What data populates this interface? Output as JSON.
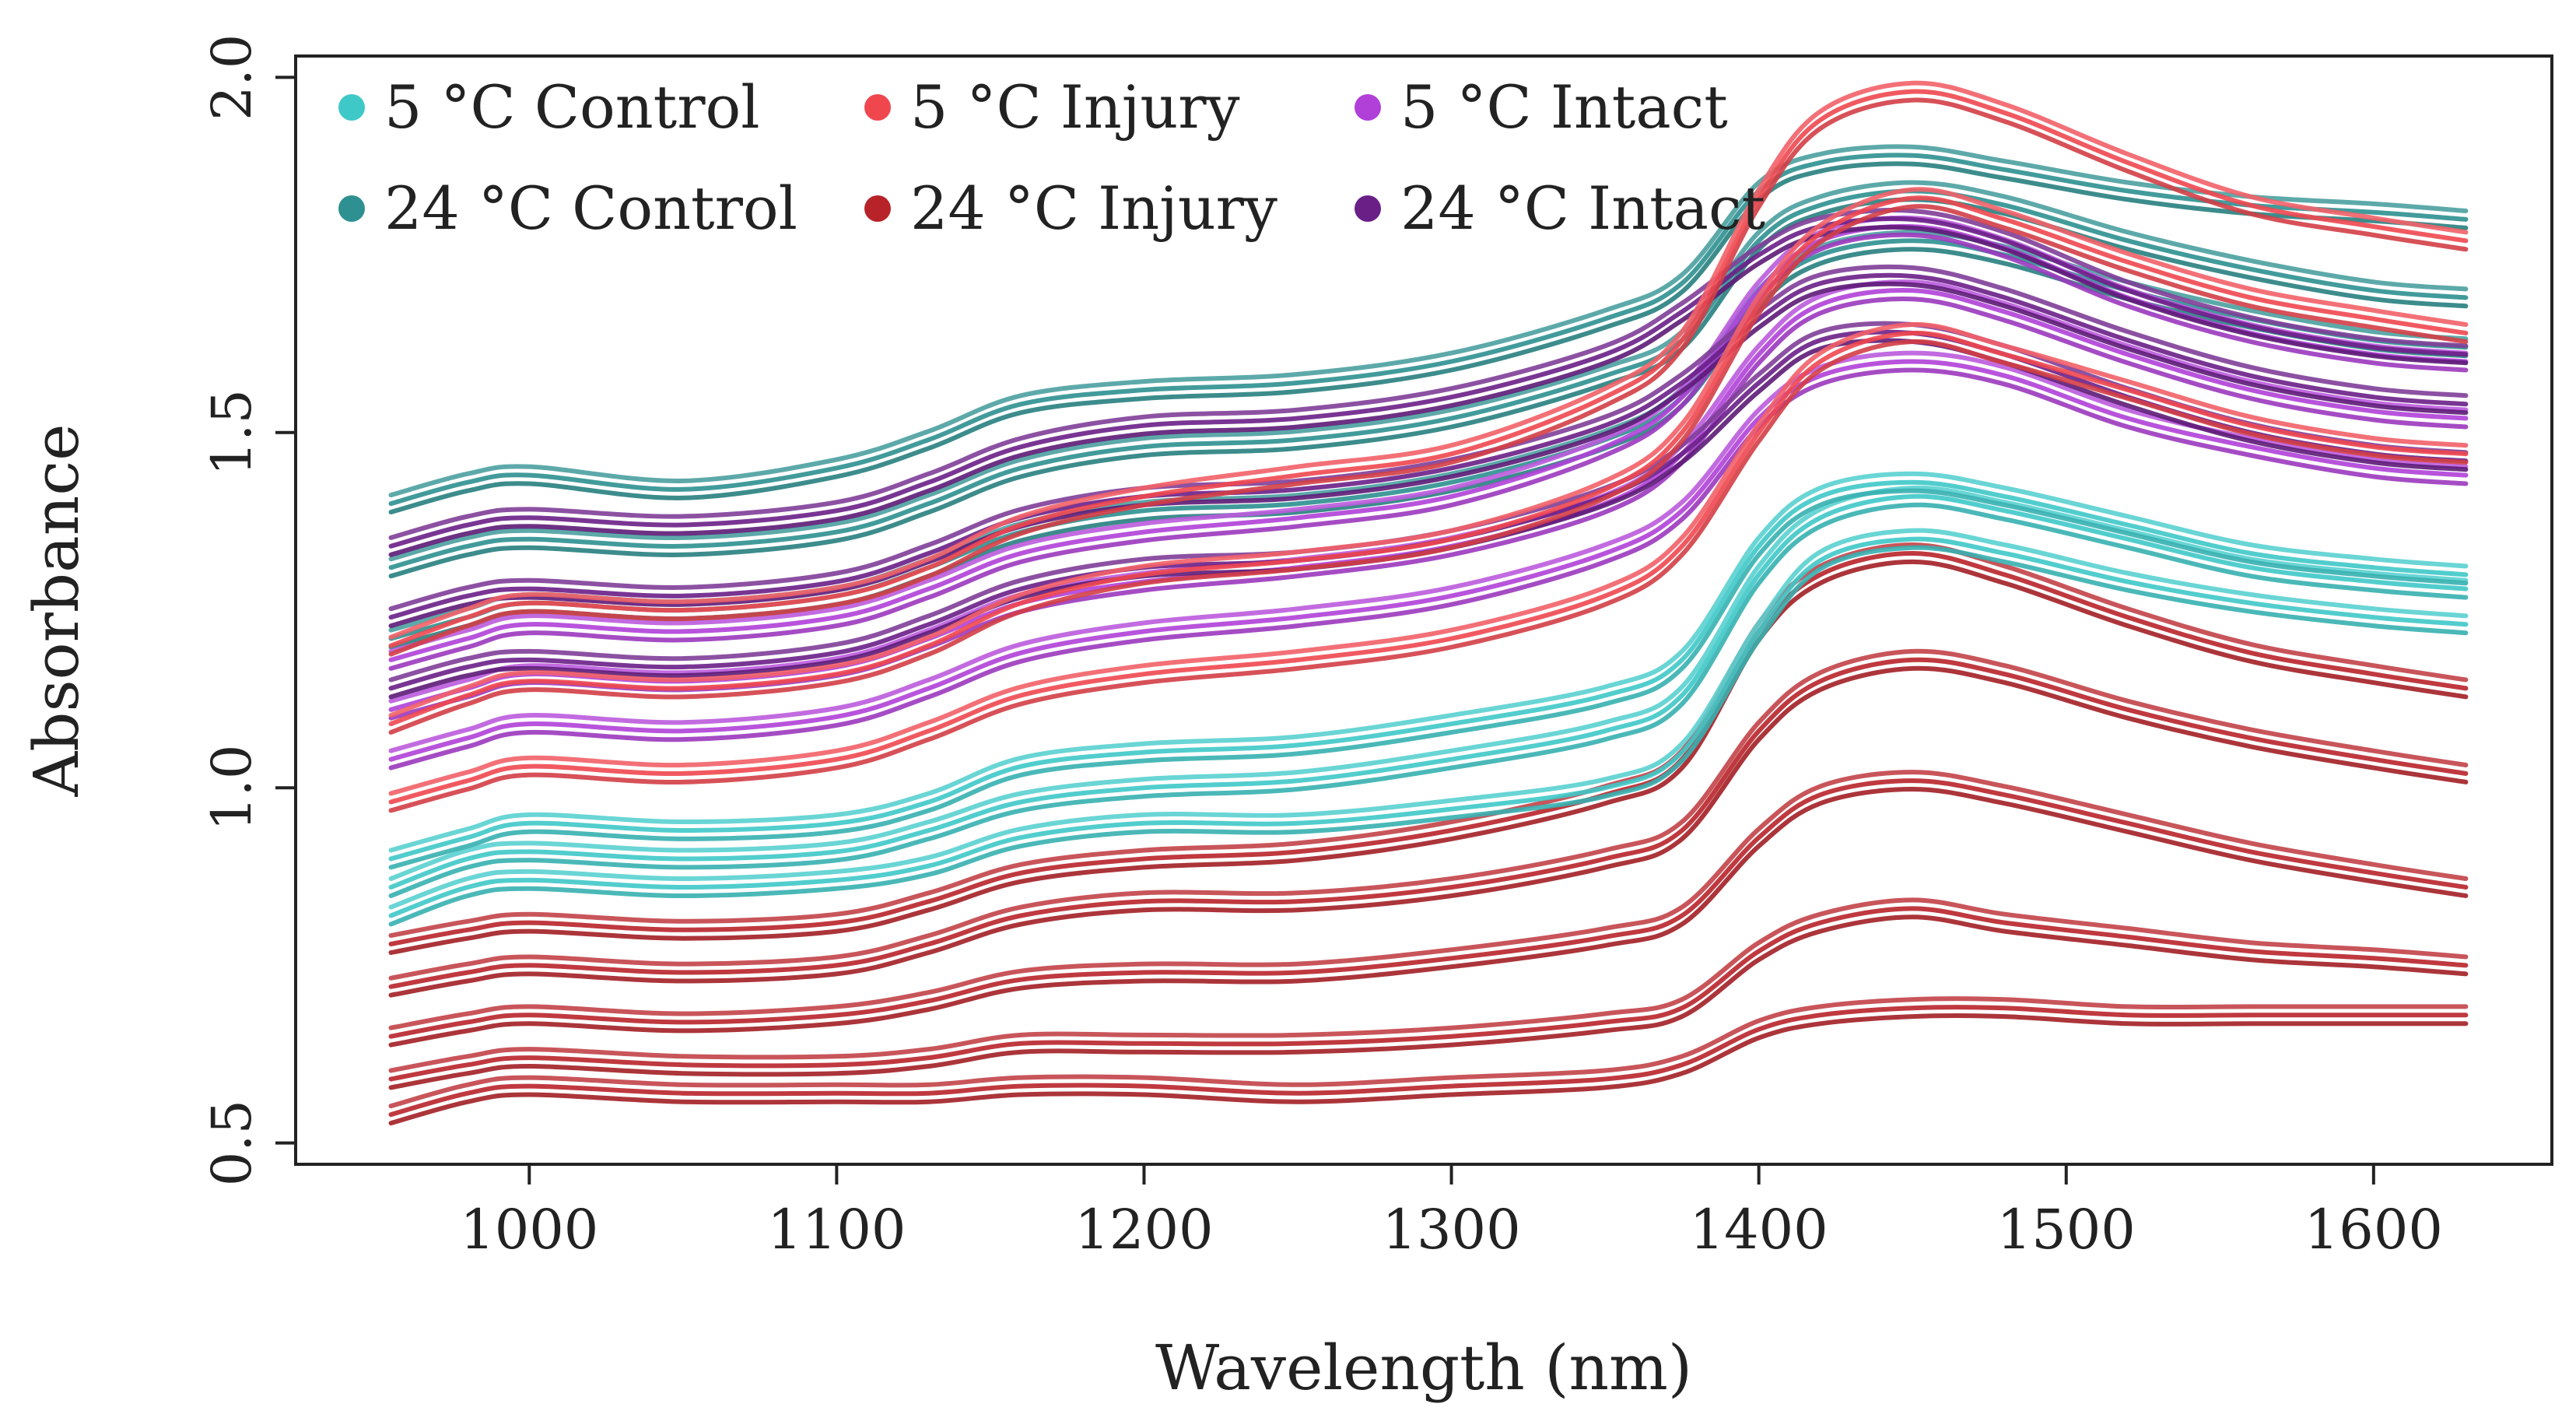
{
  "chart_data": {
    "type": "line",
    "title": "",
    "xlabel": "Wavelength (nm)",
    "ylabel": "Absorbance",
    "xlim": [
      924,
      1658
    ],
    "ylim": [
      0.47,
      2.03
    ],
    "x_ticks": [
      1000,
      1100,
      1200,
      1300,
      1400,
      1500,
      1600
    ],
    "x_tick_labels": [
      "1000",
      "1100",
      "1200",
      "1300",
      "1400",
      "1500",
      "1600"
    ],
    "y_ticks": [
      0.5,
      1.0,
      1.5,
      2.0
    ],
    "y_tick_labels": [
      "0.5",
      "1.0",
      "1.5",
      "2.0"
    ],
    "grid": false,
    "legend_position": "top-left",
    "x": [
      955,
      980,
      1000,
      1050,
      1100,
      1130,
      1160,
      1200,
      1250,
      1300,
      1350,
      1375,
      1400,
      1420,
      1450,
      1480,
      1520,
      1560,
      1600,
      1630
    ],
    "series": [
      {
        "name": "5 °C Control",
        "color": "#3fc8c8",
        "curves": [
          [
            0.82,
            0.86,
            0.87,
            0.86,
            0.87,
            0.89,
            0.93,
            0.95,
            0.95,
            0.97,
            1.0,
            1.05,
            1.22,
            1.32,
            1.35,
            1.33,
            1.29,
            1.26,
            1.24,
            1.23
          ],
          [
            0.86,
            0.9,
            0.91,
            0.9,
            0.91,
            0.94,
            0.98,
            1.0,
            1.01,
            1.04,
            1.08,
            1.13,
            1.3,
            1.38,
            1.41,
            1.39,
            1.35,
            1.31,
            1.29,
            1.28
          ],
          [
            0.9,
            0.93,
            0.95,
            0.94,
            0.95,
            0.98,
            1.03,
            1.05,
            1.06,
            1.09,
            1.13,
            1.18,
            1.34,
            1.41,
            1.43,
            1.41,
            1.37,
            1.33,
            1.31,
            1.3
          ]
        ]
      },
      {
        "name": "5 °C Injury",
        "color": "#f0474f",
        "curves": [
          [
            1.2,
            1.24,
            1.26,
            1.25,
            1.27,
            1.31,
            1.37,
            1.41,
            1.44,
            1.47,
            1.55,
            1.63,
            1.83,
            1.94,
            1.98,
            1.95,
            1.88,
            1.82,
            1.79,
            1.77
          ],
          [
            1.09,
            1.13,
            1.15,
            1.14,
            1.16,
            1.2,
            1.26,
            1.3,
            1.32,
            1.35,
            1.42,
            1.5,
            1.68,
            1.78,
            1.83,
            1.8,
            1.74,
            1.69,
            1.66,
            1.64
          ],
          [
            0.98,
            1.01,
            1.03,
            1.02,
            1.04,
            1.08,
            1.13,
            1.16,
            1.18,
            1.21,
            1.27,
            1.34,
            1.5,
            1.6,
            1.64,
            1.61,
            1.56,
            1.51,
            1.48,
            1.47
          ]
        ]
      },
      {
        "name": "5 °C Intact",
        "color": "#b040d8",
        "curves": [
          [
            1.18,
            1.21,
            1.23,
            1.22,
            1.24,
            1.28,
            1.33,
            1.36,
            1.38,
            1.41,
            1.48,
            1.55,
            1.7,
            1.77,
            1.79,
            1.76,
            1.69,
            1.64,
            1.61,
            1.6
          ],
          [
            1.11,
            1.14,
            1.16,
            1.15,
            1.17,
            1.21,
            1.26,
            1.29,
            1.31,
            1.34,
            1.4,
            1.47,
            1.61,
            1.68,
            1.7,
            1.67,
            1.61,
            1.56,
            1.53,
            1.52
          ],
          [
            1.04,
            1.07,
            1.09,
            1.08,
            1.1,
            1.14,
            1.19,
            1.22,
            1.24,
            1.27,
            1.33,
            1.39,
            1.52,
            1.58,
            1.6,
            1.58,
            1.52,
            1.48,
            1.45,
            1.44
          ]
        ]
      },
      {
        "name": "24 °C Control",
        "color": "#2e9090",
        "curves": [
          [
            1.4,
            1.43,
            1.44,
            1.42,
            1.45,
            1.49,
            1.54,
            1.56,
            1.57,
            1.6,
            1.66,
            1.71,
            1.84,
            1.88,
            1.89,
            1.87,
            1.84,
            1.82,
            1.81,
            1.8
          ],
          [
            1.31,
            1.34,
            1.35,
            1.34,
            1.36,
            1.4,
            1.45,
            1.48,
            1.49,
            1.52,
            1.58,
            1.63,
            1.77,
            1.82,
            1.84,
            1.82,
            1.77,
            1.73,
            1.7,
            1.69
          ],
          [
            1.21,
            1.24,
            1.26,
            1.25,
            1.27,
            1.31,
            1.36,
            1.39,
            1.4,
            1.43,
            1.49,
            1.55,
            1.69,
            1.75,
            1.77,
            1.75,
            1.7,
            1.66,
            1.63,
            1.62
          ]
        ]
      },
      {
        "name": "24 °C Injury",
        "color": "#b8232a",
        "curves": [
          [
            0.78,
            0.8,
            0.81,
            0.8,
            0.81,
            0.84,
            0.88,
            0.9,
            0.91,
            0.94,
            0.99,
            1.04,
            1.22,
            1.3,
            1.33,
            1.3,
            1.24,
            1.19,
            1.16,
            1.14
          ],
          [
            0.72,
            0.74,
            0.75,
            0.74,
            0.75,
            0.78,
            0.82,
            0.84,
            0.84,
            0.86,
            0.9,
            0.94,
            1.08,
            1.15,
            1.18,
            1.16,
            1.11,
            1.07,
            1.04,
            1.02
          ],
          [
            0.65,
            0.67,
            0.68,
            0.67,
            0.68,
            0.7,
            0.73,
            0.74,
            0.74,
            0.76,
            0.79,
            0.82,
            0.93,
            0.99,
            1.01,
            0.99,
            0.95,
            0.91,
            0.88,
            0.86
          ],
          [
            0.59,
            0.61,
            0.62,
            0.61,
            0.61,
            0.62,
            0.64,
            0.64,
            0.64,
            0.65,
            0.67,
            0.69,
            0.77,
            0.81,
            0.83,
            0.81,
            0.79,
            0.77,
            0.76,
            0.75
          ],
          [
            0.54,
            0.57,
            0.58,
            0.57,
            0.57,
            0.57,
            0.58,
            0.58,
            0.57,
            0.58,
            0.59,
            0.61,
            0.66,
            0.68,
            0.69,
            0.69,
            0.68,
            0.68,
            0.68,
            0.68
          ]
        ]
      },
      {
        "name": "24 °C Intact",
        "color": "#6a1f87",
        "curves": [
          [
            1.34,
            1.37,
            1.38,
            1.37,
            1.39,
            1.43,
            1.48,
            1.51,
            1.52,
            1.55,
            1.61,
            1.67,
            1.75,
            1.79,
            1.8,
            1.77,
            1.7,
            1.65,
            1.62,
            1.61
          ],
          [
            1.24,
            1.27,
            1.28,
            1.27,
            1.29,
            1.33,
            1.38,
            1.41,
            1.42,
            1.45,
            1.51,
            1.57,
            1.66,
            1.71,
            1.72,
            1.69,
            1.63,
            1.58,
            1.55,
            1.54
          ],
          [
            1.14,
            1.17,
            1.18,
            1.17,
            1.19,
            1.23,
            1.28,
            1.31,
            1.32,
            1.35,
            1.41,
            1.47,
            1.57,
            1.63,
            1.64,
            1.61,
            1.55,
            1.5,
            1.47,
            1.46
          ]
        ]
      }
    ],
    "legend": [
      {
        "label": "5 °C Control",
        "color": "#3fc8c8"
      },
      {
        "label": "5 °C Injury",
        "color": "#f0474f"
      },
      {
        "label": "5 °C Intact",
        "color": "#b040d8"
      },
      {
        "label": "24 °C Control",
        "color": "#2e9090"
      },
      {
        "label": "24 °C Injury",
        "color": "#b8232a"
      },
      {
        "label": "24 °C Intact",
        "color": "#6a1f87"
      }
    ]
  }
}
